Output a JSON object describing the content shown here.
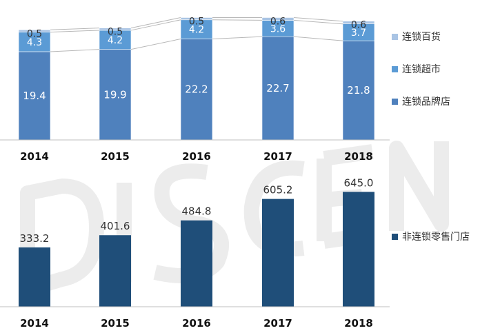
{
  "colors": {
    "brand_store": "#4f81bd",
    "supermarket": "#5b9bd5",
    "department": "#a9c4e4",
    "non_chain": "#1f4e79",
    "axis": "#bfbfbf",
    "watermark": "#eeeeee"
  },
  "chart_data": [
    {
      "type": "bar",
      "stacked": true,
      "categories": [
        "2014",
        "2015",
        "2016",
        "2017",
        "2018"
      ],
      "series": [
        {
          "name": "连锁品牌店",
          "values": [
            19.4,
            19.9,
            22.2,
            22.7,
            21.8
          ],
          "labels": [
            "19.4",
            "19.9",
            "22.2",
            "22.7",
            "21.8"
          ]
        },
        {
          "name": "连锁超市",
          "values": [
            4.3,
            4.2,
            4.2,
            3.6,
            3.7
          ],
          "labels": [
            "4.3",
            "4.2",
            "4.2",
            "3.6",
            "3.7"
          ]
        },
        {
          "name": "连锁百货",
          "values": [
            0.5,
            0.5,
            0.5,
            0.6,
            0.6
          ],
          "labels": [
            "0.5",
            "0.5",
            "0.5",
            "0.6",
            "0.6"
          ]
        }
      ],
      "legend": "right"
    },
    {
      "type": "bar",
      "categories": [
        "2014",
        "2015",
        "2016",
        "2017",
        "2018"
      ],
      "series": [
        {
          "name": "非连锁零售门店",
          "values": [
            333.2,
            401.6,
            484.8,
            605.2,
            645.0
          ],
          "labels": [
            "333.2",
            "401.6",
            "484.8",
            "605.2",
            "645.0"
          ]
        }
      ],
      "legend": "right"
    }
  ]
}
